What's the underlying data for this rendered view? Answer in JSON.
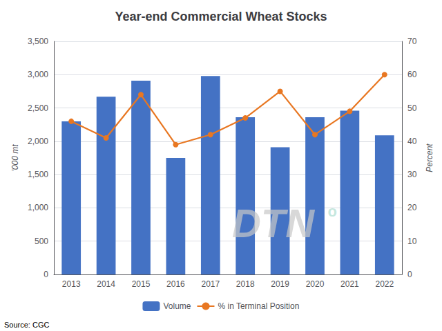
{
  "chart_data": {
    "type": "bar",
    "title": "Year-end Commercial Wheat Stocks",
    "categories": [
      "2013",
      "2014",
      "2015",
      "2016",
      "2017",
      "2018",
      "2019",
      "2020",
      "2021",
      "2022"
    ],
    "series": [
      {
        "name": "Volume",
        "type": "bar",
        "color": "#4472C4",
        "values": [
          2300,
          2670,
          2910,
          1750,
          2980,
          2360,
          1910,
          2360,
          2460,
          2090
        ]
      },
      {
        "name": "% in Terminal Position",
        "type": "line",
        "color": "#E87722",
        "marker": "circle",
        "axis": "y2",
        "values": [
          46,
          41,
          54,
          39,
          42,
          47,
          55,
          42,
          49,
          60
        ]
      }
    ],
    "ylabel": "'000 mt",
    "y2label": "Percent",
    "ylim": [
      0,
      3500
    ],
    "yticks": [
      0,
      500,
      {
        "value": 1000,
        "label": "1,000"
      },
      {
        "value": 1500,
        "label": "1,500"
      },
      {
        "value": 2000,
        "label": "2,000"
      },
      {
        "value": 2500,
        "label": "2,500"
      },
      {
        "value": 3000,
        "label": "3,000"
      },
      {
        "value": 3500,
        "label": "3,500"
      }
    ],
    "y2lim": [
      0,
      70
    ],
    "y2ticks": [
      0,
      10,
      20,
      30,
      40,
      50,
      60,
      70
    ],
    "grid": true,
    "legend": "bottom",
    "annotations": [
      "Source: CGC",
      "DTN",
      "o"
    ]
  }
}
